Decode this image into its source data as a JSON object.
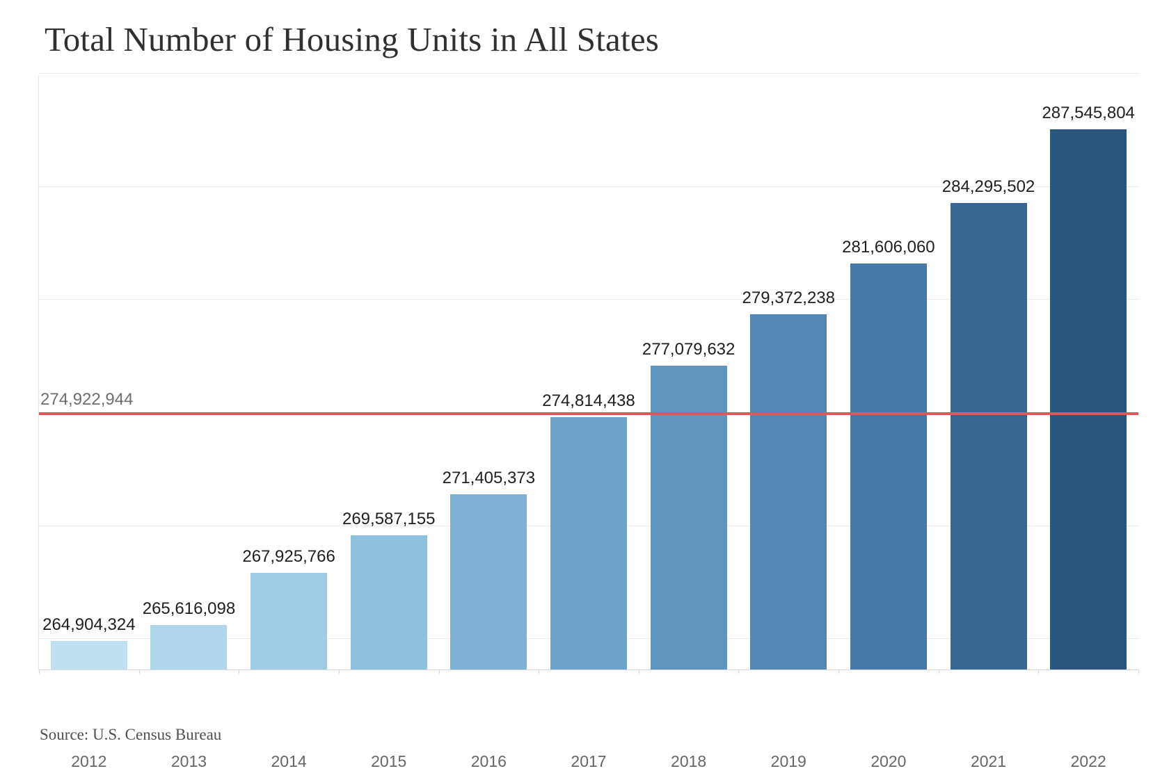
{
  "title": "Total Number of Housing Units in All States",
  "source_note": "Source: U.S. Census Bureau",
  "chart_data": {
    "type": "bar",
    "title": "Total Number of Housing Units in All States",
    "categories": [
      "2012",
      "2013",
      "2014",
      "2015",
      "2016",
      "2017",
      "2018",
      "2019",
      "2020",
      "2021",
      "2022"
    ],
    "values": [
      264904324,
      265616098,
      267925766,
      269587155,
      271405373,
      274814438,
      277079632,
      279372238,
      281606060,
      284295502,
      287545804
    ],
    "value_labels": [
      "264,904,324",
      "265,616,098",
      "267,925,766",
      "269,587,155",
      "271,405,373",
      "274,814,438",
      "277,079,632",
      "279,372,238",
      "281,606,060",
      "284,295,502",
      "287,545,804"
    ],
    "bar_colors": [
      "#bfe0f1",
      "#afd6ec",
      "#9fcbe5",
      "#8fc0de",
      "#7fb1d5",
      "#70a3cb",
      "#6095c0",
      "#5387b4",
      "#477aa8",
      "#386793",
      "#2a557f"
    ],
    "xlabel": "",
    "ylabel": "",
    "ylim": [
      263650000,
      289950000
    ],
    "gridline_values": [
      265000000,
      270000000,
      275000000,
      280000000,
      285000000,
      290000000
    ],
    "grid": "on",
    "legend": "none",
    "reference_line": {
      "value": 274922944,
      "label": "274,922,944",
      "color": "#e15759"
    }
  }
}
